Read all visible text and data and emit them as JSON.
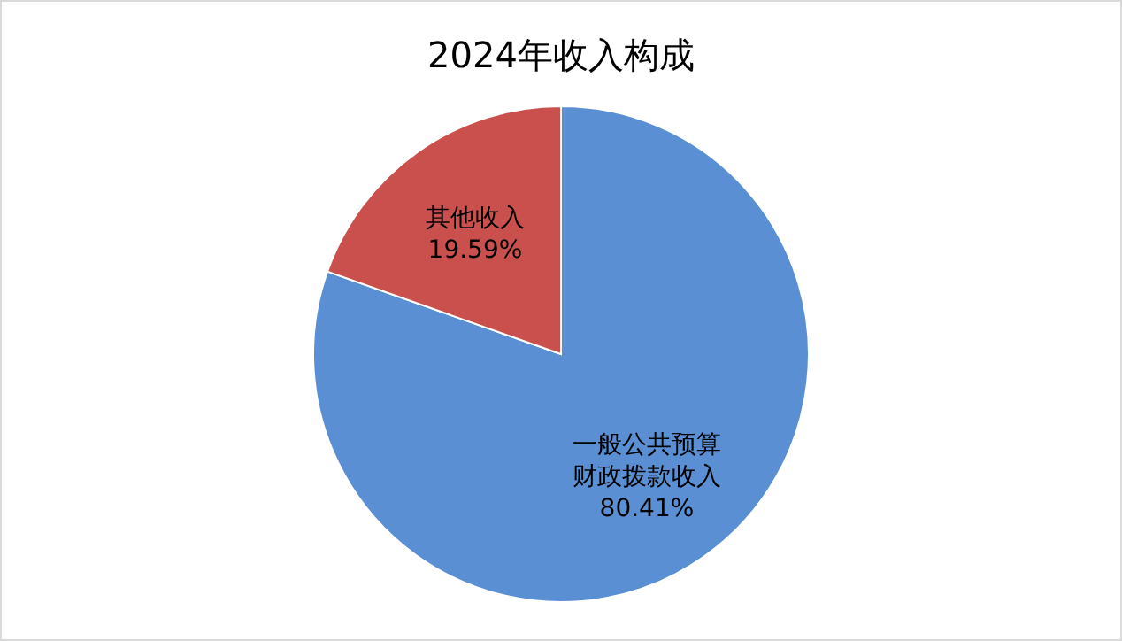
{
  "chart_data": {
    "type": "pie",
    "title": "2024年收入构成",
    "categories": [
      "一般公共预算财政拨款收入",
      "其他收入"
    ],
    "values": [
      80.41,
      19.59
    ],
    "colors": [
      "#5b8fd3",
      "#c9504d"
    ],
    "value_labels": [
      "80.41%",
      "19.59%"
    ],
    "legend": false
  }
}
